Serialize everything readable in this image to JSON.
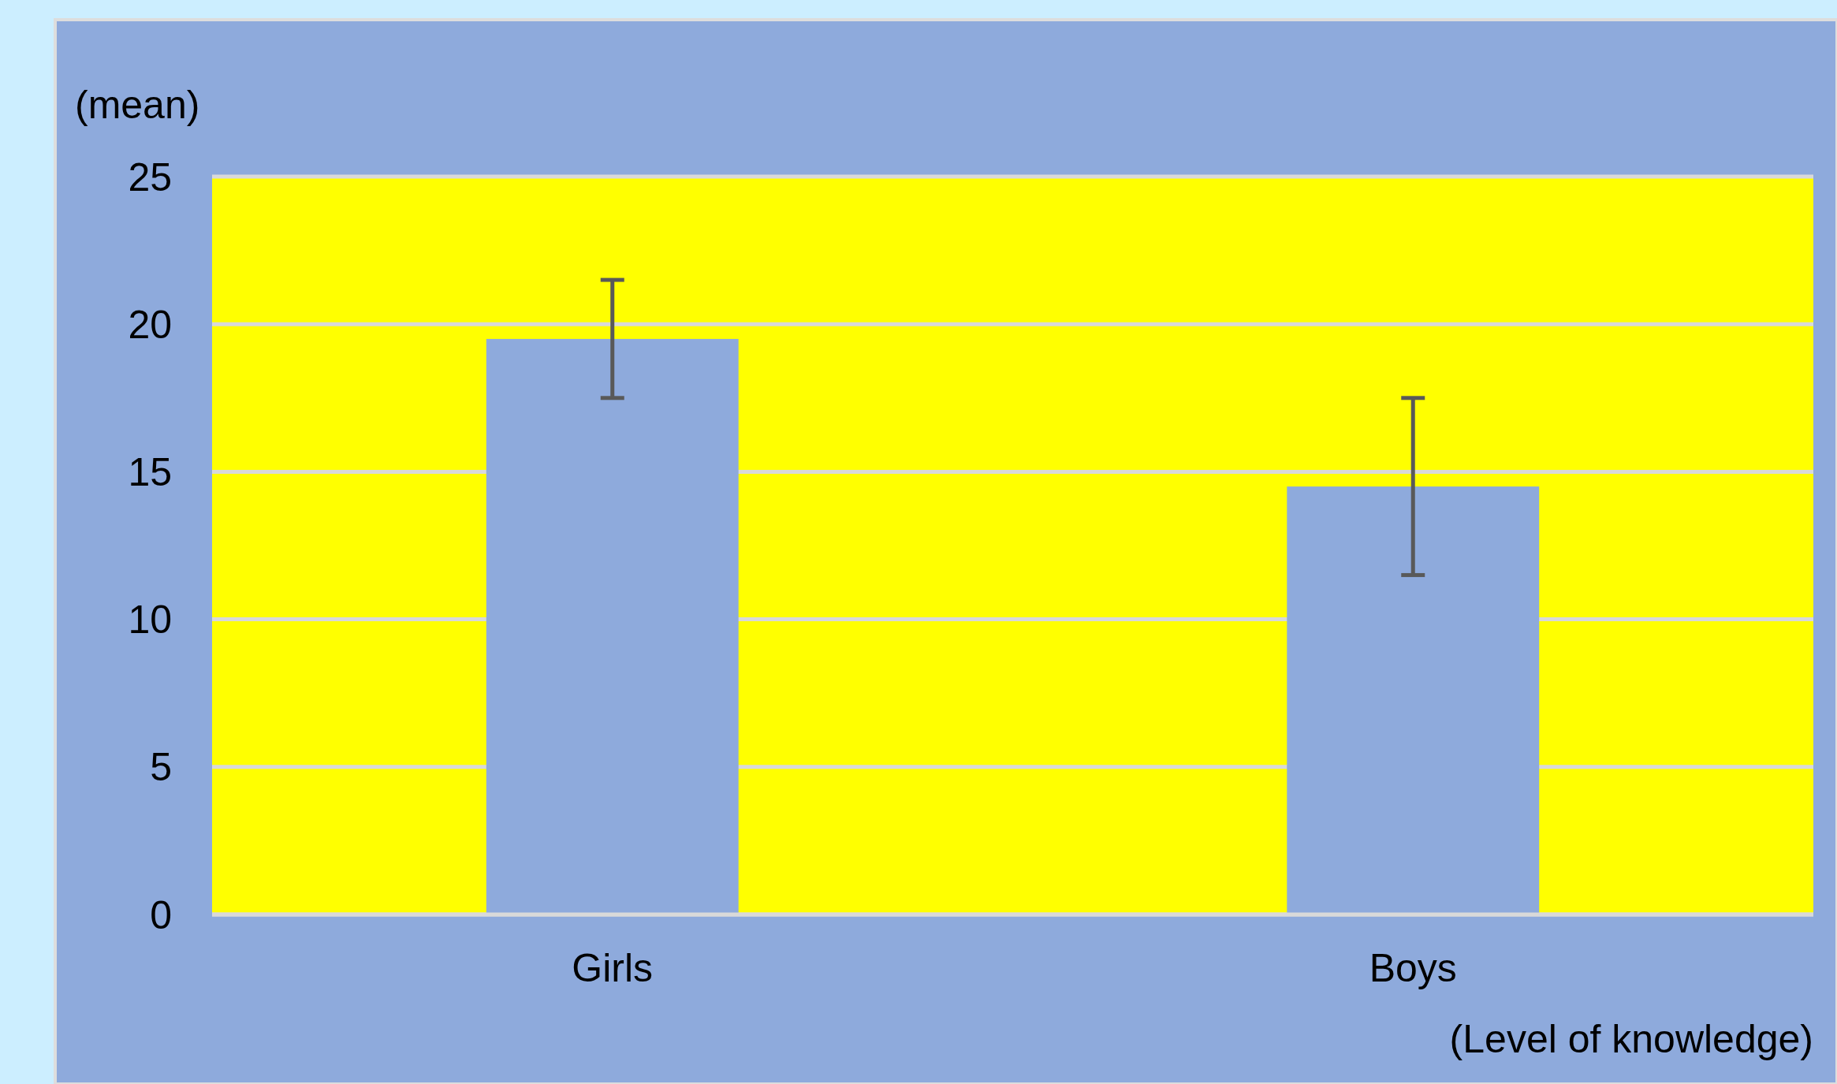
{
  "chart_data": {
    "type": "bar",
    "ylabel": "(mean)",
    "xlabel": "(Level of knowledge)",
    "categories": [
      "Girls",
      "Boys"
    ],
    "values": [
      19.5,
      14.5
    ],
    "errors": [
      2,
      3
    ],
    "color": "#8eaadc",
    "ylim": [
      0,
      25
    ],
    "yticks": [
      0,
      5,
      10,
      15,
      20,
      25
    ],
    "grid": true
  }
}
